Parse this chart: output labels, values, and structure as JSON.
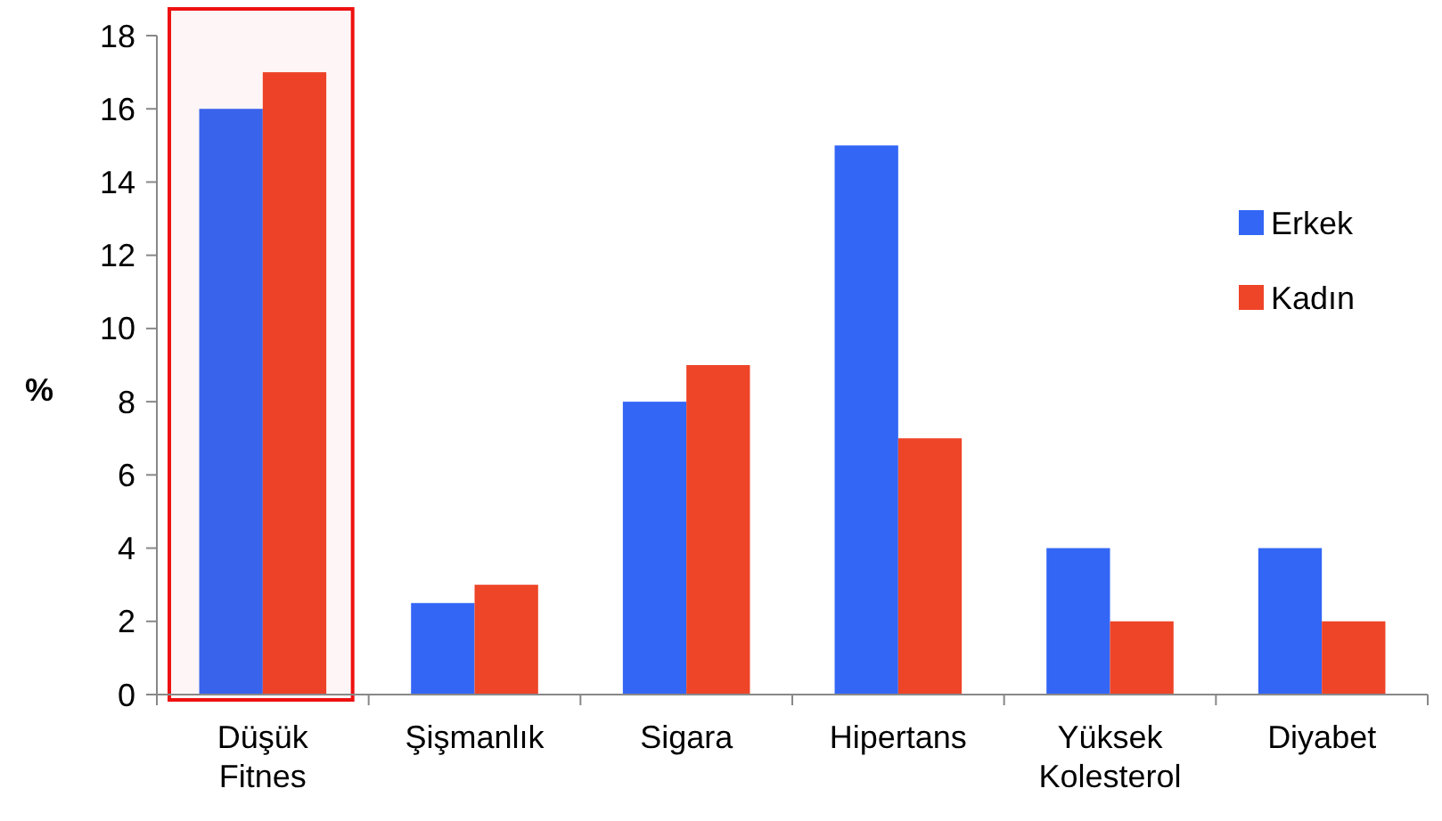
{
  "chart_data": {
    "type": "bar",
    "ylabel": "%",
    "categories": [
      "Düşük Fitnes",
      "Şişmanlık",
      "Sigara",
      "Hipertans",
      "Yüksek Kolesterol",
      "Diyabet"
    ],
    "series": [
      {
        "name": "Erkek",
        "color": "#3366f5",
        "values": [
          16,
          2.5,
          8,
          15,
          4,
          4
        ]
      },
      {
        "name": "Kadın",
        "color": "#ee4428",
        "values": [
          17,
          3,
          9,
          7,
          2,
          2
        ]
      }
    ],
    "ylim": [
      0,
      18
    ],
    "yticks": [
      0,
      2,
      4,
      6,
      8,
      10,
      12,
      14,
      16,
      18
    ],
    "grid": false,
    "legend": "right",
    "bands": [
      {
        "axis": "x",
        "from": "Düşük Fitnes",
        "to": "Düşük Fitnes",
        "color": "#ee1111"
      }
    ]
  }
}
